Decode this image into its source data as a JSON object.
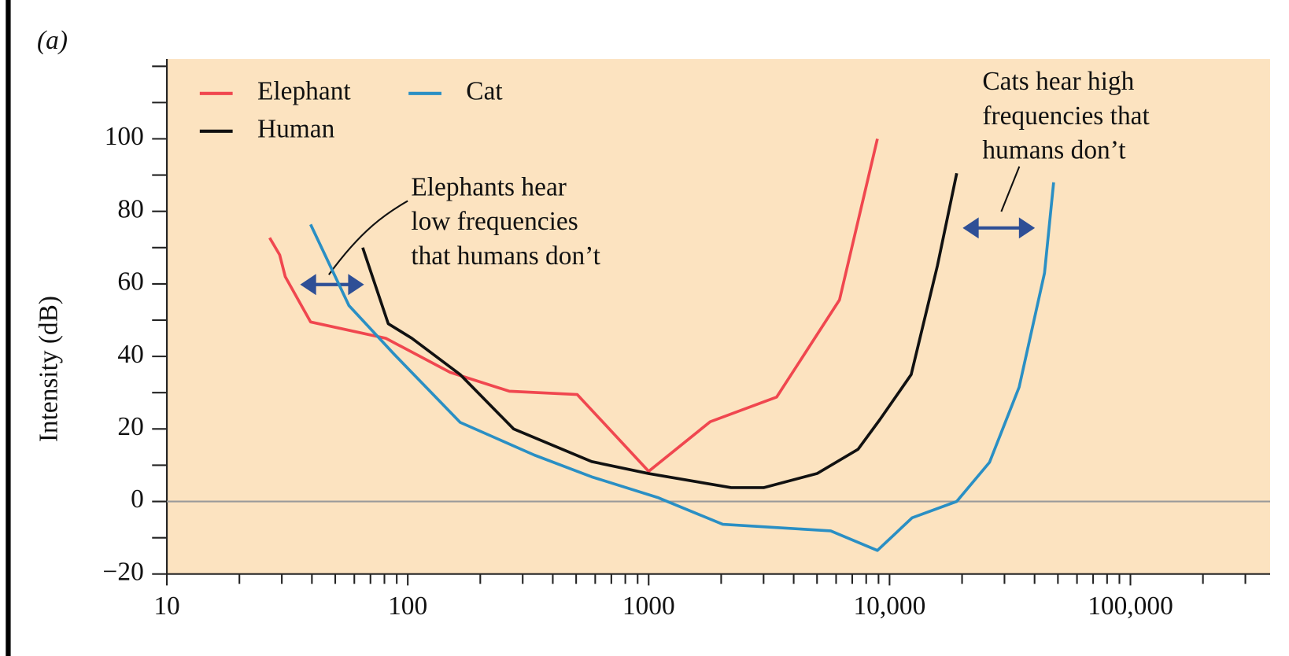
{
  "chart_data": {
    "type": "line",
    "panel_label": "(a)",
    "ylabel": "Intensity (dB)",
    "xscale": "log",
    "xlim": [
      10,
      380000
    ],
    "ylim": [
      -20,
      122
    ],
    "xticks": [
      10,
      100,
      1000,
      {
        "value": 10000,
        "label": "10,000"
      },
      {
        "value": 100000,
        "label": "100,000"
      }
    ],
    "xticks_minor": [
      20,
      30,
      40,
      50,
      60,
      70,
      80,
      90,
      200,
      300,
      400,
      500,
      600,
      700,
      800,
      900,
      2000,
      3000,
      4000,
      5000,
      6000,
      7000,
      8000,
      9000,
      20000,
      30000,
      40000,
      50000,
      60000,
      70000,
      80000,
      90000,
      200000,
      300000
    ],
    "yticks": [
      {
        "value": -20,
        "label": "−20"
      },
      0,
      20,
      40,
      60,
      80,
      100
    ],
    "yticks_minor": [
      -10,
      10,
      30,
      50,
      70,
      90,
      110,
      120
    ],
    "zero_line": true,
    "background": "#fce3c0",
    "legend": "upper left",
    "series": [
      {
        "name": "Elephant",
        "color": "#f0474f",
        "x": [
          26.7,
          29.4,
          31,
          39.5,
          81,
          150,
          264,
          505,
          1000,
          1800,
          3400,
          6200,
          8900
        ],
        "values": [
          72.7,
          68,
          62,
          49.5,
          45,
          35.6,
          30.4,
          29.5,
          8.3,
          22,
          28.8,
          55.6,
          100
        ]
      },
      {
        "name": "Human",
        "color": "#111111",
        "x": [
          65,
          83,
          104,
          165,
          275,
          580,
          1000,
          2200,
          3000,
          5000,
          7400,
          9100,
          12300,
          15800,
          19000
        ],
        "values": [
          70,
          49,
          45,
          35,
          20,
          11,
          7.7,
          3.8,
          3.8,
          7.7,
          14.4,
          22.5,
          35,
          65,
          90.5
        ]
      },
      {
        "name": "Cat",
        "color": "#2a8fc4",
        "x": [
          39.5,
          57,
          88,
          165,
          335,
          580,
          1090,
          2030,
          5700,
          8900,
          12400,
          19000,
          26000,
          34500,
          44000,
          48000
        ],
        "values": [
          76.4,
          54,
          40.5,
          21.8,
          12.8,
          6.8,
          1.1,
          -6.3,
          -8.1,
          -13.5,
          -4.5,
          0,
          10.8,
          31.5,
          63,
          88
        ]
      }
    ],
    "annotations": [
      {
        "lines": [
          "Elephants hear",
          "low frequencies",
          "that humans don’t"
        ]
      },
      {
        "lines": [
          "Cats hear high",
          "frequencies that",
          "humans don’t"
        ]
      }
    ]
  }
}
